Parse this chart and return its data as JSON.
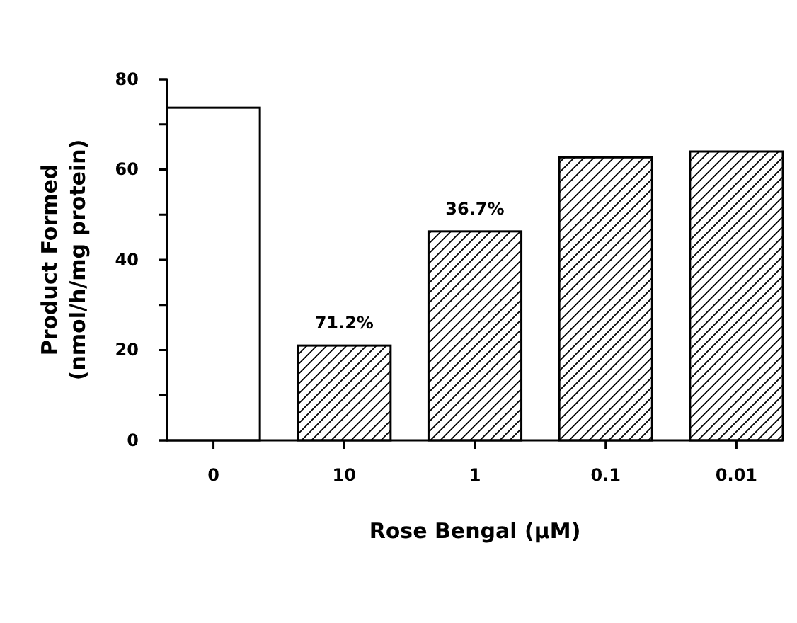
{
  "chart_data": {
    "type": "bar",
    "xlabel": "Rose Bengal (µM)",
    "ylabel": "Product Formed\n(nmol/h/mg protein)",
    "categories": [
      "0",
      "10",
      "1",
      "0.1",
      "0.01"
    ],
    "values": [
      73.7,
      21,
      46.3,
      62.7,
      64
    ],
    "colors": [
      "#ffffff",
      "#000000",
      "#000000",
      "#000000",
      "#000000"
    ],
    "annotations": [
      {
        "text": "71.2%",
        "x": "10",
        "y": 21
      },
      {
        "text": "36.7%",
        "x": "1",
        "y": 46.3
      }
    ],
    "ylim": [
      0,
      80
    ],
    "yticks": [
      0,
      {
        "value": 10,
        "label": null
      },
      20,
      {
        "value": 30,
        "label": null
      },
      40,
      {
        "value": 50,
        "label": null
      },
      60,
      {
        "value": 70,
        "label": null
      },
      80
    ],
    "grid": false
  }
}
